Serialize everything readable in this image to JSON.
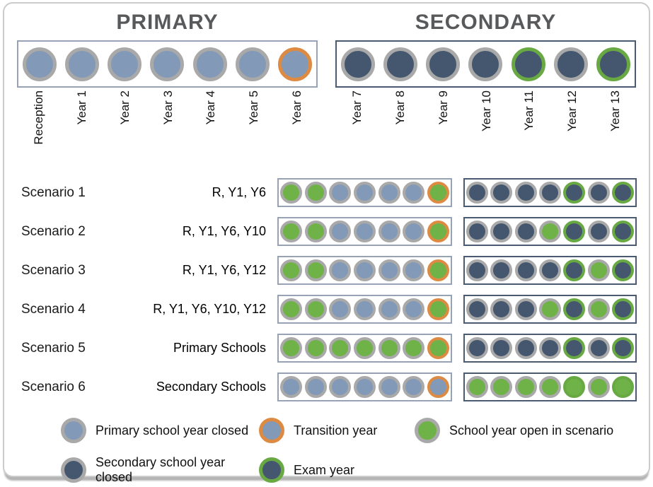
{
  "colors": {
    "primary_fill": "#8299b8",
    "secondary_fill": "#44576f",
    "green_fill": "#6fb247",
    "gray_ring": "#a9a9a9",
    "orange_ring": "#dd8a43",
    "green_ring": "#68a944",
    "primary_box_border": "#97a3b4",
    "secondary_box_border": "#4a5a70",
    "heading_color": "#58595b",
    "description_color": "#999999"
  },
  "header": {
    "primary_title": "PRIMARY",
    "secondary_title": "SECONDARY"
  },
  "year_axis": {
    "primary_labels": [
      "Reception",
      "Year 1",
      "Year 2",
      "Year 3",
      "Year 4",
      "Year 5",
      "Year 6"
    ],
    "secondary_labels": [
      "Year 7",
      "Year 8",
      "Year 9",
      "Year 10",
      "Year 11",
      "Year 12",
      "Year 13"
    ],
    "primary_states": [
      "primary-closed",
      "primary-closed",
      "primary-closed",
      "primary-closed",
      "primary-closed",
      "primary-closed",
      "transition-closed"
    ],
    "secondary_states": [
      "secondary-closed",
      "secondary-closed",
      "secondary-closed",
      "secondary-closed",
      "exam-closed",
      "secondary-closed",
      "exam-closed"
    ]
  },
  "scenarios": [
    {
      "label": "Scenario 1",
      "description": "R, Y1, Y6",
      "primary": [
        "open",
        "open",
        "primary-closed",
        "primary-closed",
        "primary-closed",
        "primary-closed",
        "transition-open"
      ],
      "secondary": [
        "secondary-closed",
        "secondary-closed",
        "secondary-closed",
        "secondary-closed",
        "exam-closed",
        "secondary-closed",
        "exam-closed"
      ]
    },
    {
      "label": "Scenario 2",
      "description": "R, Y1, Y6, Y10",
      "primary": [
        "open",
        "open",
        "primary-closed",
        "primary-closed",
        "primary-closed",
        "primary-closed",
        "transition-open"
      ],
      "secondary": [
        "secondary-closed",
        "secondary-closed",
        "secondary-closed",
        "open",
        "exam-closed",
        "secondary-closed",
        "exam-closed"
      ]
    },
    {
      "label": "Scenario 3",
      "description": "R, Y1, Y6, Y12",
      "primary": [
        "open",
        "open",
        "primary-closed",
        "primary-closed",
        "primary-closed",
        "primary-closed",
        "transition-open"
      ],
      "secondary": [
        "secondary-closed",
        "secondary-closed",
        "secondary-closed",
        "secondary-closed",
        "exam-closed",
        "open",
        "exam-closed"
      ]
    },
    {
      "label": "Scenario 4",
      "description": "R, Y1, Y6, Y10, Y12",
      "primary": [
        "open",
        "open",
        "primary-closed",
        "primary-closed",
        "primary-closed",
        "primary-closed",
        "transition-open"
      ],
      "secondary": [
        "secondary-closed",
        "secondary-closed",
        "secondary-closed",
        "open",
        "exam-closed",
        "open",
        "exam-closed"
      ]
    },
    {
      "label": "Scenario 5",
      "description": "Primary Schools",
      "primary": [
        "open",
        "open",
        "open",
        "open",
        "open",
        "open",
        "transition-open"
      ],
      "secondary": [
        "secondary-closed",
        "secondary-closed",
        "secondary-closed",
        "secondary-closed",
        "exam-closed",
        "secondary-closed",
        "exam-closed"
      ]
    },
    {
      "label": "Scenario 6",
      "description": "Secondary Schools",
      "primary": [
        "primary-closed",
        "primary-closed",
        "primary-closed",
        "primary-closed",
        "primary-closed",
        "primary-closed",
        "transition-closed"
      ],
      "secondary": [
        "open",
        "open",
        "open",
        "open",
        "exam-open",
        "open",
        "exam-open"
      ]
    }
  ],
  "legend": {
    "items": [
      {
        "label": "Primary school year closed",
        "swatch": "primary-closed"
      },
      {
        "label": "Transition year",
        "swatch": "transition-closed"
      },
      {
        "label": "School year open in scenario",
        "swatch": "open"
      },
      {
        "label": "Secondary school year closed",
        "swatch": "secondary-closed"
      },
      {
        "label": "Exam year",
        "swatch": "exam-closed"
      }
    ]
  }
}
